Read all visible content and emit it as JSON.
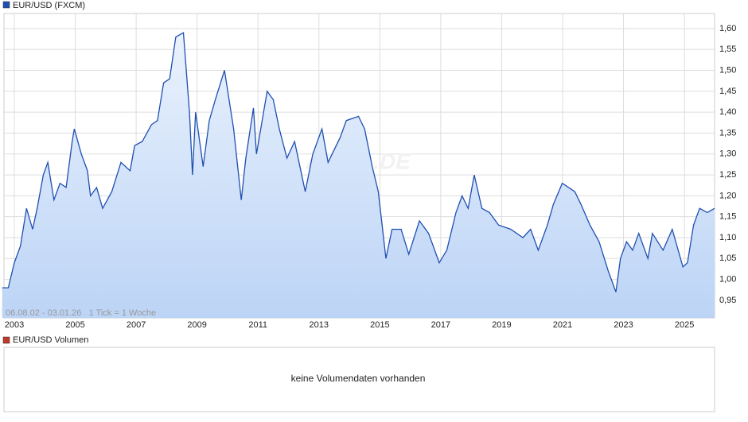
{
  "chart_data": {
    "type": "line",
    "footnote": "06.08.02 - 03.01.26   1 Tick = 1 Woche",
    "watermark": "ARIVA.DE",
    "x": [
      2002.6,
      2002.8,
      2003.0,
      2003.2,
      2003.4,
      2003.6,
      2003.75,
      2003.95,
      2004.1,
      2004.3,
      2004.5,
      2004.7,
      2004.9,
      2004.97,
      2005.2,
      2005.4,
      2005.5,
      2005.7,
      2005.9,
      2006.2,
      2006.5,
      2006.8,
      2006.95,
      2007.2,
      2007.5,
      2007.7,
      2007.9,
      2008.1,
      2008.3,
      2008.55,
      2008.75,
      2008.85,
      2008.95,
      2009.2,
      2009.4,
      2009.6,
      2009.9,
      2010.2,
      2010.45,
      2010.6,
      2010.85,
      2010.95,
      2011.3,
      2011.5,
      2011.7,
      2011.95,
      2012.2,
      2012.55,
      2012.8,
      2013.1,
      2013.3,
      2013.7,
      2013.9,
      2014.3,
      2014.5,
      2014.75,
      2014.95,
      2015.2,
      2015.4,
      2015.7,
      2015.95,
      2016.3,
      2016.6,
      2016.95,
      2017.2,
      2017.5,
      2017.7,
      2017.9,
      2018.1,
      2018.35,
      2018.6,
      2018.9,
      2019.3,
      2019.7,
      2019.95,
      2020.2,
      2020.5,
      2020.7,
      2020.99,
      2021.4,
      2021.6,
      2021.9,
      2022.2,
      2022.5,
      2022.75,
      2022.9,
      2023.1,
      2023.3,
      2023.5,
      2023.8,
      2023.95,
      2024.3,
      2024.6,
      2024.95,
      2025.1,
      2025.3,
      2025.5,
      2025.75,
      2025.99
    ],
    "series": [
      {
        "name": "EUR/USD (FXCM)",
        "color": "#1f4fb0",
        "values": [
          0.98,
          0.98,
          1.04,
          1.08,
          1.17,
          1.12,
          1.17,
          1.25,
          1.28,
          1.19,
          1.23,
          1.22,
          1.33,
          1.36,
          1.3,
          1.26,
          1.2,
          1.22,
          1.17,
          1.21,
          1.28,
          1.26,
          1.32,
          1.33,
          1.37,
          1.38,
          1.47,
          1.48,
          1.58,
          1.59,
          1.4,
          1.25,
          1.4,
          1.27,
          1.38,
          1.43,
          1.5,
          1.36,
          1.19,
          1.29,
          1.41,
          1.3,
          1.45,
          1.43,
          1.36,
          1.29,
          1.33,
          1.21,
          1.3,
          1.36,
          1.28,
          1.34,
          1.38,
          1.39,
          1.36,
          1.27,
          1.21,
          1.05,
          1.12,
          1.12,
          1.06,
          1.14,
          1.11,
          1.04,
          1.07,
          1.16,
          1.2,
          1.17,
          1.25,
          1.17,
          1.16,
          1.13,
          1.12,
          1.1,
          1.12,
          1.07,
          1.13,
          1.18,
          1.23,
          1.21,
          1.18,
          1.13,
          1.09,
          1.02,
          0.97,
          1.05,
          1.09,
          1.07,
          1.11,
          1.05,
          1.11,
          1.07,
          1.12,
          1.03,
          1.04,
          1.13,
          1.17,
          1.16,
          1.17
        ]
      }
    ],
    "xlim": [
      2002.66,
      2025.99
    ],
    "xticks": [
      2003,
      2005,
      2007,
      2009,
      2011,
      2013,
      2015,
      2017,
      2019,
      2021,
      2023,
      2025
    ],
    "ylim": [
      0.908,
      1.636
    ],
    "yticks": [
      {
        "value": 0.95,
        "label": "0,95"
      },
      {
        "value": 1.0,
        "label": "1,00"
      },
      {
        "value": 1.05,
        "label": "1,05"
      },
      {
        "value": 1.1,
        "label": "1,10"
      },
      {
        "value": 1.15,
        "label": "1,15"
      },
      {
        "value": 1.2,
        "label": "1,20"
      },
      {
        "value": 1.25,
        "label": "1,25"
      },
      {
        "value": 1.3,
        "label": "1,30"
      },
      {
        "value": 1.35,
        "label": "1,35"
      },
      {
        "value": 1.4,
        "label": "1,40"
      },
      {
        "value": 1.45,
        "label": "1,45"
      },
      {
        "value": 1.5,
        "label": "1,50"
      },
      {
        "value": 1.55,
        "label": "1,55"
      },
      {
        "value": 1.6,
        "label": "1,60"
      }
    ],
    "grid": true
  },
  "volume_panel": {
    "title": "EUR/USD Volumen",
    "color": "#c0392b",
    "message": "keine Volumendaten vorhanden"
  }
}
